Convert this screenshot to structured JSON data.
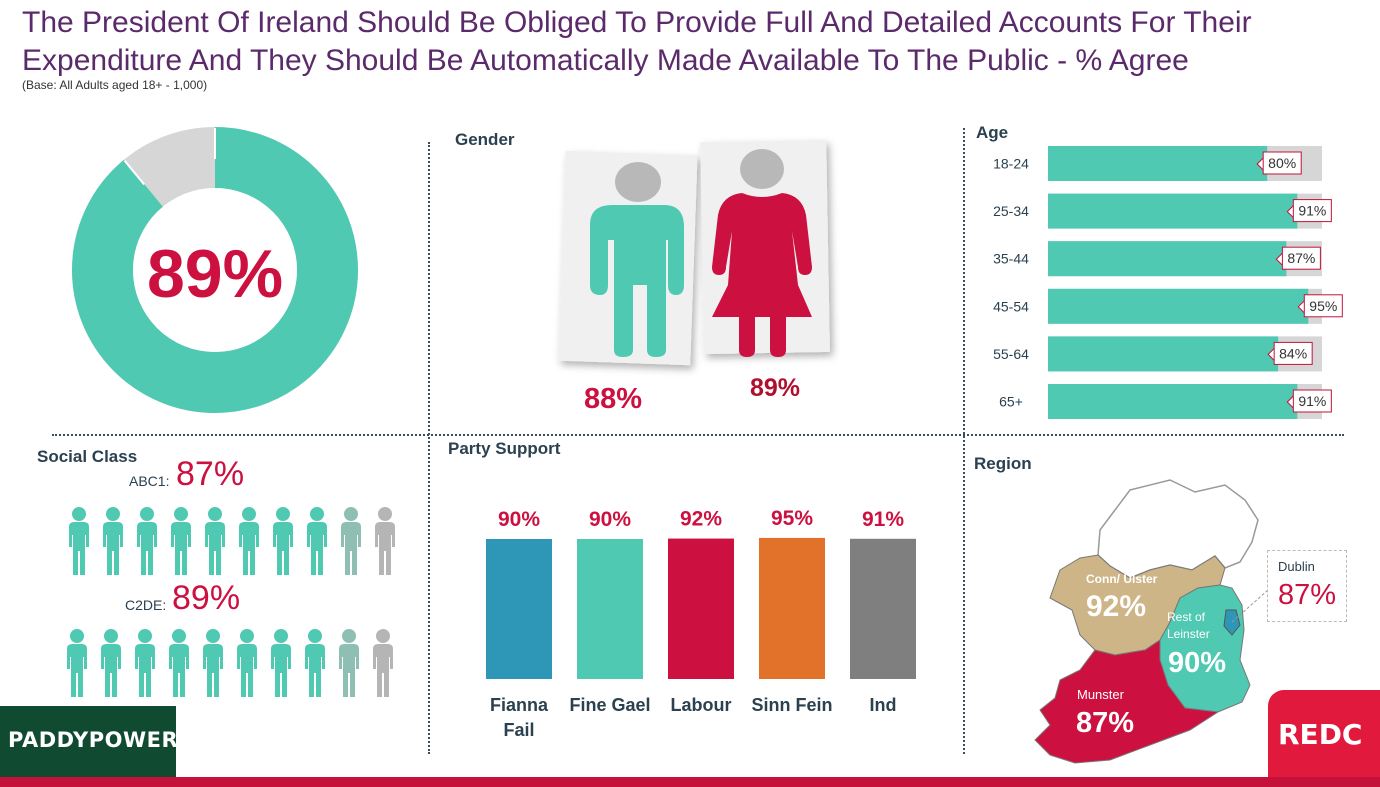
{
  "header": {
    "title": "The President Of Ireland Should Be Obliged To Provide Full And Detailed Accounts For Their Expenditure And They Should Be Automatically Made Available To The Public - % Agree",
    "base": "(Base: All Adults aged 18+ - 1,000)"
  },
  "colors": {
    "teal": "#4fc9b2",
    "crimson": "#cc1040",
    "grey": "#d6d6d6",
    "purple": "#5b2a6b",
    "dark_red": "#b0102e"
  },
  "overall": {
    "label": "89%",
    "value": 89
  },
  "sections": {
    "gender": "Gender",
    "age": "Age",
    "social_class": "Social Class",
    "party_support": "Party Support",
    "region": "Region"
  },
  "chart_data": [
    {
      "type": "pie",
      "title": "",
      "slices": [
        {
          "label": "Agree",
          "value": 89
        },
        {
          "label": "",
          "value": 11
        }
      ]
    },
    {
      "type": "bar",
      "title": "Gender",
      "categories": [
        "Male",
        "Female"
      ],
      "values": [
        88,
        89
      ],
      "labels": [
        "88%",
        "89%"
      ]
    },
    {
      "type": "bar",
      "title": "Age",
      "orientation": "horizontal",
      "categories": [
        "18-24",
        "25-34",
        "35-44",
        "45-54",
        "55-64",
        "65+"
      ],
      "values": [
        80,
        91,
        87,
        95,
        84,
        91
      ],
      "labels": [
        "80%",
        "91%",
        "87%",
        "95%",
        "84%",
        "91%"
      ],
      "xlim": [
        0,
        100
      ]
    },
    {
      "type": "bar",
      "title": "Social Class",
      "categories": [
        "ABC1:",
        "C2DE:"
      ],
      "values": [
        87,
        89
      ],
      "labels": [
        "87%",
        "89%"
      ]
    },
    {
      "type": "bar",
      "title": "Party Support",
      "categories": [
        "Fianna Fail",
        "Fine Gael",
        "Labour",
        "Sinn Fein",
        "Ind"
      ],
      "values": [
        90,
        90,
        92,
        95,
        91
      ],
      "labels": [
        "90%",
        "90%",
        "92%",
        "95%",
        "91%"
      ],
      "colors": [
        "#2e96b6",
        "#4fc9b2",
        "#cc1040",
        "#e2722a",
        "#7f7f7f"
      ]
    },
    {
      "type": "table",
      "title": "Region",
      "categories": [
        "Conn/ Ulster",
        "Rest of Leinster",
        "Dublin",
        "Munster"
      ],
      "values": [
        92,
        90,
        87,
        87
      ],
      "labels": [
        "92%",
        "90%",
        "87%",
        "87%"
      ]
    }
  ],
  "gender": {
    "male": {
      "label": "88%",
      "value": 88
    },
    "female": {
      "label": "89%",
      "value": 89
    }
  },
  "age": {
    "rows": [
      {
        "label": "18-24",
        "value": 80,
        "text": "80%"
      },
      {
        "label": "25-34",
        "value": 91,
        "text": "91%"
      },
      {
        "label": "35-44",
        "value": 87,
        "text": "87%"
      },
      {
        "label": "45-54",
        "value": 95,
        "text": "95%"
      },
      {
        "label": "55-64",
        "value": 84,
        "text": "84%"
      },
      {
        "label": "65+",
        "value": 91,
        "text": "91%"
      }
    ]
  },
  "social_class": {
    "abc1": {
      "label": "ABC1:",
      "text": "87%",
      "value": 87
    },
    "c2de": {
      "label": "C2DE:",
      "text": "89%",
      "value": 89
    }
  },
  "party": {
    "bars": [
      {
        "name": "Fianna Fail",
        "name_lines": [
          "Fianna",
          "Fail"
        ],
        "value": 90,
        "text": "90%",
        "color": "#2e96b6"
      },
      {
        "name": "Fine Gael",
        "name_lines": [
          "Fine Gael"
        ],
        "value": 90,
        "text": "90%",
        "color": "#4fc9b2"
      },
      {
        "name": "Labour",
        "name_lines": [
          "Labour"
        ],
        "value": 92,
        "text": "92%",
        "color": "#cc1040"
      },
      {
        "name": "Sinn Fein",
        "name_lines": [
          "Sinn Fein"
        ],
        "value": 95,
        "text": "95%",
        "color": "#e2722a"
      },
      {
        "name": "Ind",
        "name_lines": [
          "Ind"
        ],
        "value": 91,
        "text": "91%",
        "color": "#7f7f7f"
      }
    ]
  },
  "region": {
    "conn_ulster": {
      "label": "Conn/ Ulster",
      "text": "92%"
    },
    "rest_leinster": {
      "label_lines": [
        "Rest of",
        "Leinster"
      ],
      "text": "90%"
    },
    "dublin": {
      "label": "Dublin",
      "text": "87%"
    },
    "munster": {
      "label": "Munster",
      "text": "87%"
    }
  },
  "logos": {
    "paddypower": "PADDYPOWER.",
    "redc": "REDC"
  }
}
